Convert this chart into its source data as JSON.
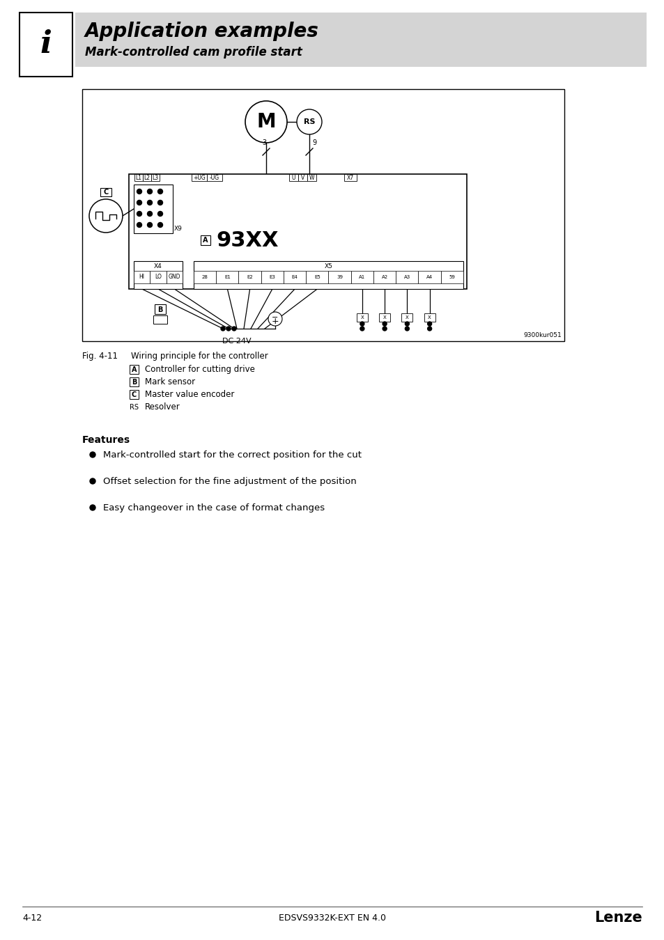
{
  "title": "Application examples",
  "subtitle": "Mark-controlled cam profile start",
  "page_number": "4-12",
  "doc_id": "EDSVS9332K-EXT EN 4.0",
  "brand": "Lenze",
  "header_bg": "#d4d4d4",
  "fig_label": "Fig. 4-11",
  "fig_caption": "Wiring principle for the controller",
  "legend_items": [
    [
      "A",
      "Controller for cutting drive"
    ],
    [
      "B",
      "Mark sensor"
    ],
    [
      "C",
      "Master value encoder"
    ],
    [
      "RS",
      "Resolver"
    ]
  ],
  "features_title": "Features",
  "features": [
    "Mark-controlled start for the correct position for the cut",
    "Offset selection for the fine adjustment of the position",
    "Easy changeover in the case of format changes"
  ],
  "diagram_ref": "9300kur051"
}
